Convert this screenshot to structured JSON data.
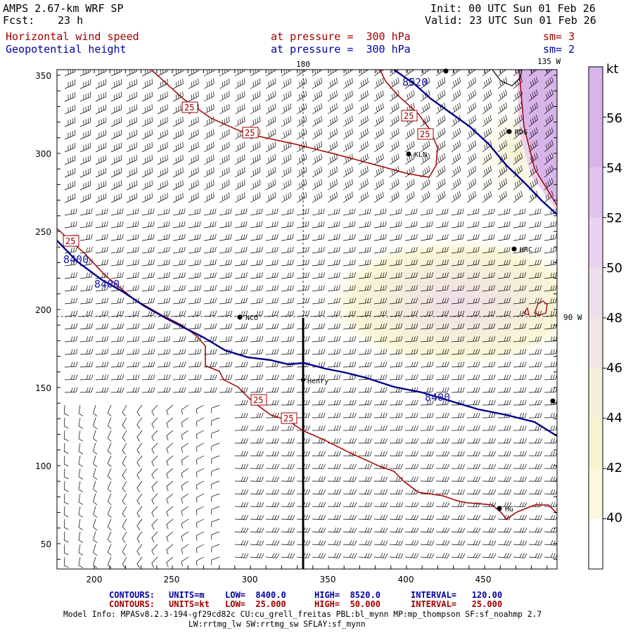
{
  "header": {
    "model": "AMPS 2.67-km WRF SP",
    "fcst_label": "Fcst:",
    "fcst_value": "23 h",
    "init": "Init: 00 UTC Sun 01 Feb 26",
    "valid": "Valid: 23 UTC Sun 01 Feb 26",
    "field1": "Horizontal wind speed",
    "field1_level": "at pressure =  300 hPa",
    "field1_sm": "sm= 3",
    "field2": "Geopotential height",
    "field2_level": "at pressure =  300 hPa",
    "field2_sm": "sm= 2"
  },
  "map": {
    "lon_labels": [
      "180",
      "135 W",
      "90 W"
    ],
    "x_ticks": [
      "200",
      "250",
      "300",
      "350",
      "400",
      "450"
    ],
    "y_ticks": [
      "350",
      "300",
      "250",
      "200",
      "150",
      "100",
      "50"
    ],
    "stations": [
      "KLN",
      "RDG",
      "HRC",
      "NCO",
      "Henry",
      "HG"
    ],
    "height_contour_labels": [
      "8520",
      "8400",
      "8400",
      "8400"
    ],
    "speed_contour_labels": [
      "25",
      "25",
      "25",
      "25",
      "25",
      "25",
      "25"
    ]
  },
  "colorbar": {
    "unit": "kt",
    "labels": [
      "56",
      "54",
      "52",
      "50",
      "48",
      "46",
      "44",
      "42",
      "40"
    ],
    "colors": [
      "#d9b3ec",
      "#e2c3ee",
      "#ead3ee",
      "#efdeec",
      "#f2e6e4",
      "#f5eedb",
      "#f8f3cf",
      "#fbf8dd",
      "#ffffff"
    ]
  },
  "footer": {
    "c1_label": "CONTOURS:",
    "c1_units": "UNITS=m",
    "c1_low": "LOW=  8400.0",
    "c1_high": "HIGH=  8520.0",
    "c1_interval": "INTERVAL=   120.00",
    "c2_label": "CONTOURS:",
    "c2_units": "UNITS=kt",
    "c2_low": "LOW=  25.000",
    "c2_high": "HIGH=  50.000",
    "c2_interval": "INTERVAL=   25.000",
    "model_info": "Model Info: MPASv8.2.3-194-gf29cd82c CU:cu_grell_freitas PBL:bl_mynn MP:mp_thompson SF:sf_noahmp 2.7",
    "model_info2": "LW:rrtmg_lw SW:rrtmg_sw SFLAY:sf_mynn"
  }
}
